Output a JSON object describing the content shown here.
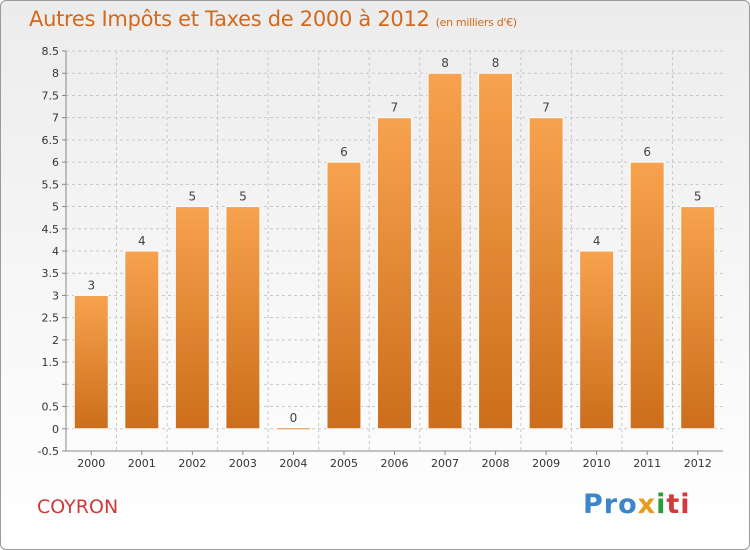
{
  "header": {
    "title": "Autres Impôts et Taxes de 2000 à 2012",
    "unit": "(en milliers d'€)"
  },
  "footer": {
    "commune": "COYRON",
    "brand": [
      "Pro",
      "x",
      "i",
      "ti"
    ]
  },
  "colors": {
    "bar_top": "#f7a24e",
    "bar_bottom": "#cc6e1c",
    "grid": "#c8c8c8",
    "title": "#d2691e"
  },
  "chart_data": {
    "type": "bar",
    "title": "Autres Impôts et Taxes de 2000 à 2012",
    "subtitle": "(en milliers d'€)",
    "categories": [
      "2000",
      "2001",
      "2002",
      "2003",
      "2004",
      "2005",
      "2006",
      "2007",
      "2008",
      "2009",
      "2010",
      "2011",
      "2012"
    ],
    "values": [
      3,
      4,
      5,
      5,
      0,
      6,
      7,
      8,
      8,
      7,
      4,
      6,
      5
    ],
    "data_labels": [
      "3",
      "4",
      "5",
      "5",
      "0",
      "6",
      "7",
      "8",
      "8",
      "7",
      "4",
      "6",
      "5"
    ],
    "ylim": [
      -0.5,
      8.5
    ],
    "yticks": [
      -0.5,
      0,
      0.5,
      1,
      1.5,
      2,
      2.5,
      3,
      3.5,
      4,
      4.5,
      5,
      5.5,
      6,
      6.5,
      7,
      7.5,
      8,
      8.5
    ],
    "ytick_labels": [
      "-0.5",
      "0",
      "0.5",
      "",
      "1.5",
      "2",
      "2.5",
      "3",
      "3.5",
      "4",
      "4.5",
      "5",
      "5.5",
      "6",
      "6.5",
      "7",
      "7.5",
      "8",
      "8.5"
    ],
    "grid": true,
    "xlabel": "",
    "ylabel": ""
  }
}
